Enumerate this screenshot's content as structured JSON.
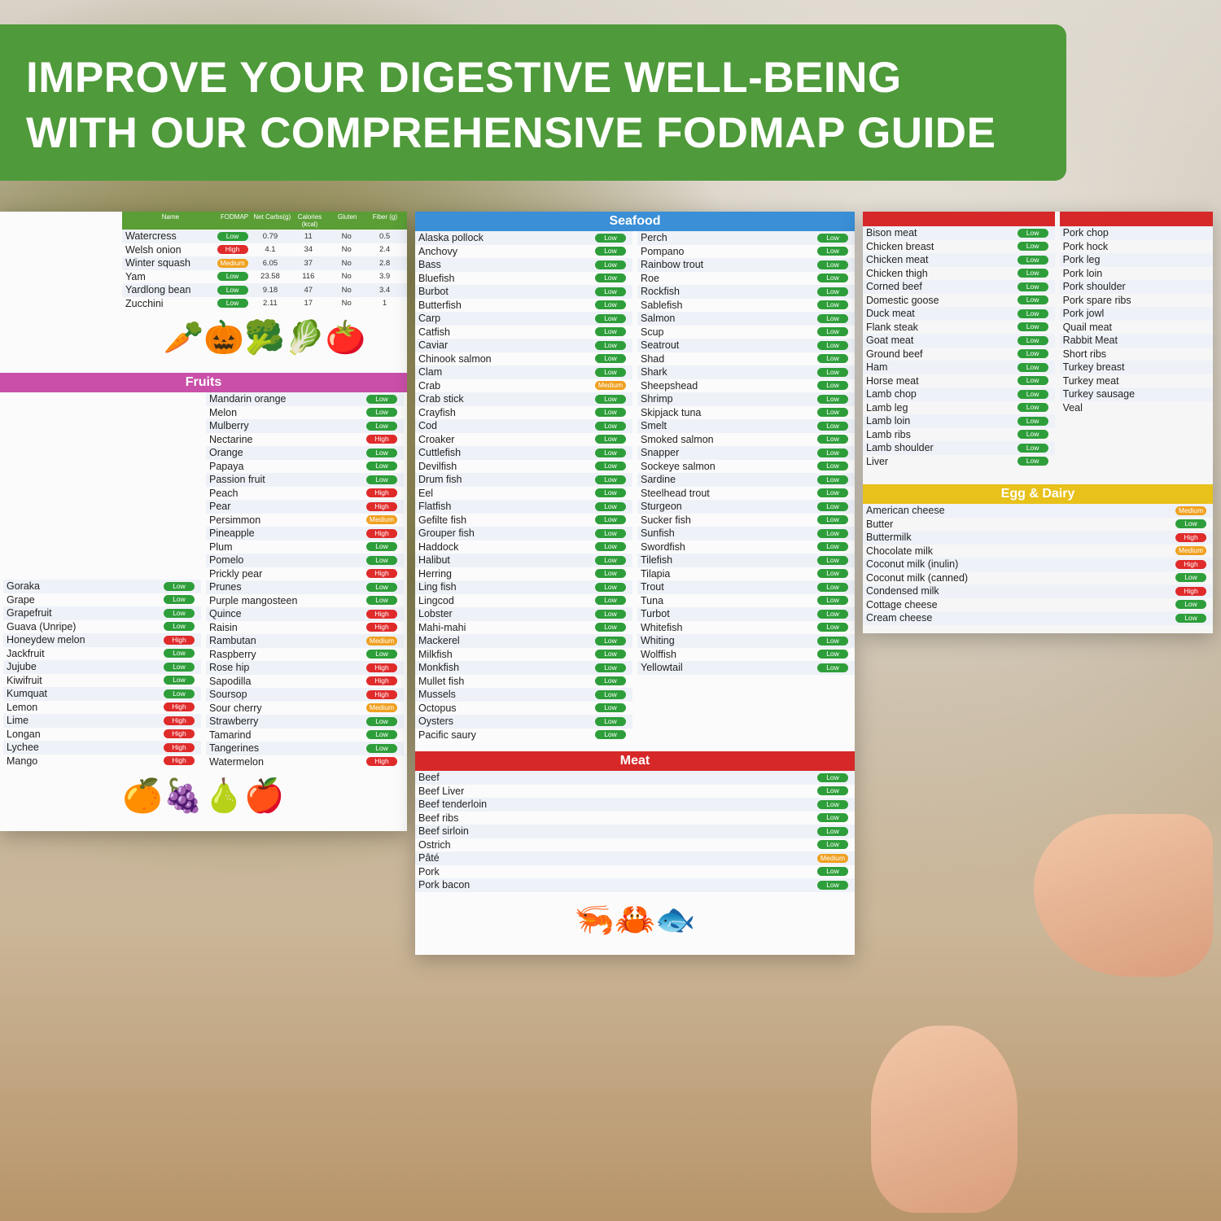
{
  "banner": {
    "line1": "IMPROVE YOUR DIGESTIVE WELL-BEING",
    "line2": "WITH OUR COMPREHENSIVE FODMAP GUIDE",
    "color": "#4f9a3a"
  },
  "headers": {
    "name": "Name",
    "fodmap": "FODMAP",
    "carbs": "Net Carbs(g)",
    "calories": "Calories (kcal)",
    "gluten": "Gluten",
    "fiber": "Fiber (g)"
  },
  "colors": {
    "Low": "#2e9e3a",
    "Medium": "#f0a020",
    "High": "#e02b2b",
    "seafood": "#3a8fd6",
    "fruits": "#c94fa8",
    "vegetables": "#5a9e35",
    "meat": "#d62828",
    "dairy": "#e8c11a"
  },
  "vegetables": {
    "items": [
      {
        "name": "Watercress",
        "fodmap": "Low",
        "carbs": "0.79",
        "cal": "11",
        "gluten": "No",
        "fiber": "0.5"
      },
      {
        "name": "Welsh onion",
        "fodmap": "High",
        "carbs": "4.1",
        "cal": "34",
        "gluten": "No",
        "fiber": "2.4"
      },
      {
        "name": "Winter squash",
        "fodmap": "Medium",
        "carbs": "6.05",
        "cal": "37",
        "gluten": "No",
        "fiber": "2.8"
      },
      {
        "name": "Yam",
        "fodmap": "Low",
        "carbs": "23.58",
        "cal": "116",
        "gluten": "No",
        "fiber": "3.9"
      },
      {
        "name": "Yardlong bean",
        "fodmap": "Low",
        "carbs": "9.18",
        "cal": "47",
        "gluten": "No",
        "fiber": "3.4"
      },
      {
        "name": "Zucchini",
        "fodmap": "Low",
        "carbs": "2.11",
        "cal": "17",
        "gluten": "No",
        "fiber": "1"
      }
    ]
  },
  "fruits": {
    "title": "Fruits",
    "left": [
      {
        "name": "Goraka",
        "fodmap": "Low"
      },
      {
        "name": "Grape",
        "fodmap": "Low"
      },
      {
        "name": "Grapefruit",
        "fodmap": "Low"
      },
      {
        "name": "Guava (Unripe)",
        "fodmap": "Low"
      },
      {
        "name": "Honeydew melon",
        "fodmap": "High"
      },
      {
        "name": "Jackfruit",
        "fodmap": "Low"
      },
      {
        "name": "Jujube",
        "fodmap": "Low"
      },
      {
        "name": "Kiwifruit",
        "fodmap": "Low"
      },
      {
        "name": "Kumquat",
        "fodmap": "Low"
      },
      {
        "name": "Lemon",
        "fodmap": "High"
      },
      {
        "name": "Lime",
        "fodmap": "High"
      },
      {
        "name": "Longan",
        "fodmap": "High"
      },
      {
        "name": "Lychee",
        "fodmap": "High"
      },
      {
        "name": "Mango",
        "fodmap": "High"
      }
    ],
    "right": [
      {
        "name": "Mandarin orange",
        "fodmap": "Low"
      },
      {
        "name": "Melon",
        "fodmap": "Low"
      },
      {
        "name": "Mulberry",
        "fodmap": "Low"
      },
      {
        "name": "Nectarine",
        "fodmap": "High"
      },
      {
        "name": "Orange",
        "fodmap": "Low"
      },
      {
        "name": "Papaya",
        "fodmap": "Low"
      },
      {
        "name": "Passion fruit",
        "fodmap": "Low"
      },
      {
        "name": "Peach",
        "fodmap": "High"
      },
      {
        "name": "Pear",
        "fodmap": "High"
      },
      {
        "name": "Persimmon",
        "fodmap": "Medium"
      },
      {
        "name": "Pineapple",
        "fodmap": "High"
      },
      {
        "name": "Plum",
        "fodmap": "Low"
      },
      {
        "name": "Pomelo",
        "fodmap": "Low"
      },
      {
        "name": "Prickly pear",
        "fodmap": "High"
      },
      {
        "name": "Prunes",
        "fodmap": "Low"
      },
      {
        "name": "Purple mangosteen",
        "fodmap": "Low"
      },
      {
        "name": "Quince",
        "fodmap": "High"
      },
      {
        "name": "Raisin",
        "fodmap": "High"
      },
      {
        "name": "Rambutan",
        "fodmap": "Medium"
      },
      {
        "name": "Raspberry",
        "fodmap": "Low"
      },
      {
        "name": "Rose hip",
        "fodmap": "High"
      },
      {
        "name": "Sapodilla",
        "fodmap": "High"
      },
      {
        "name": "Soursop",
        "fodmap": "High"
      },
      {
        "name": "Sour cherry",
        "fodmap": "Medium"
      },
      {
        "name": "Strawberry",
        "fodmap": "Low"
      },
      {
        "name": "Tamarind",
        "fodmap": "Low"
      },
      {
        "name": "Tangerines",
        "fodmap": "Low"
      },
      {
        "name": "Watermelon",
        "fodmap": "High"
      }
    ]
  },
  "seafood": {
    "title": "Seafood",
    "col1": [
      {
        "name": "Alaska pollock",
        "fodmap": "Low"
      },
      {
        "name": "Anchovy",
        "fodmap": "Low"
      },
      {
        "name": "Bass",
        "fodmap": "Low"
      },
      {
        "name": "Bluefish",
        "fodmap": "Low"
      },
      {
        "name": "Burbot",
        "fodmap": "Low"
      },
      {
        "name": "Butterfish",
        "fodmap": "Low"
      },
      {
        "name": "Carp",
        "fodmap": "Low"
      },
      {
        "name": "Catfish",
        "fodmap": "Low"
      },
      {
        "name": "Caviar",
        "fodmap": "Low"
      },
      {
        "name": "Chinook salmon",
        "fodmap": "Low"
      },
      {
        "name": "Clam",
        "fodmap": "Low"
      },
      {
        "name": "Crab",
        "fodmap": "Medium"
      },
      {
        "name": "Crab stick",
        "fodmap": "Low"
      },
      {
        "name": "Crayfish",
        "fodmap": "Low"
      },
      {
        "name": "Cod",
        "fodmap": "Low"
      },
      {
        "name": "Croaker",
        "fodmap": "Low"
      },
      {
        "name": "Cuttlefish",
        "fodmap": "Low"
      },
      {
        "name": "Devilfish",
        "fodmap": "Low"
      },
      {
        "name": "Drum fish",
        "fodmap": "Low"
      },
      {
        "name": "Eel",
        "fodmap": "Low"
      },
      {
        "name": "Flatfish",
        "fodmap": "Low"
      },
      {
        "name": "Gefilte fish",
        "fodmap": "Low"
      },
      {
        "name": "Grouper fish",
        "fodmap": "Low"
      },
      {
        "name": "Haddock",
        "fodmap": "Low"
      },
      {
        "name": "Halibut",
        "fodmap": "Low"
      },
      {
        "name": "Herring",
        "fodmap": "Low"
      },
      {
        "name": "Ling fish",
        "fodmap": "Low"
      },
      {
        "name": "Lingcod",
        "fodmap": "Low"
      },
      {
        "name": "Lobster",
        "fodmap": "Low"
      },
      {
        "name": "Mahi-mahi",
        "fodmap": "Low"
      },
      {
        "name": "Mackerel",
        "fodmap": "Low"
      },
      {
        "name": "Milkfish",
        "fodmap": "Low"
      },
      {
        "name": "Monkfish",
        "fodmap": "Low"
      },
      {
        "name": "Mullet fish",
        "fodmap": "Low"
      },
      {
        "name": "Mussels",
        "fodmap": "Low"
      },
      {
        "name": "Octopus",
        "fodmap": "Low"
      },
      {
        "name": "Oysters",
        "fodmap": "Low"
      },
      {
        "name": "Pacific saury",
        "fodmap": "Low"
      }
    ],
    "col2": [
      {
        "name": "Perch",
        "fodmap": "Low"
      },
      {
        "name": "Pompano",
        "fodmap": "Low"
      },
      {
        "name": "Rainbow trout",
        "fodmap": "Low"
      },
      {
        "name": "Roe",
        "fodmap": "Low"
      },
      {
        "name": "Rockfish",
        "fodmap": "Low"
      },
      {
        "name": "Sablefish",
        "fodmap": "Low"
      },
      {
        "name": "Salmon",
        "fodmap": "Low"
      },
      {
        "name": "Scup",
        "fodmap": "Low"
      },
      {
        "name": "Seatrout",
        "fodmap": "Low"
      },
      {
        "name": "Shad",
        "fodmap": "Low"
      },
      {
        "name": "Shark",
        "fodmap": "Low"
      },
      {
        "name": "Sheepshead",
        "fodmap": "Low"
      },
      {
        "name": "Shrimp",
        "fodmap": "Low"
      },
      {
        "name": "Skipjack tuna",
        "fodmap": "Low"
      },
      {
        "name": "Smelt",
        "fodmap": "Low"
      },
      {
        "name": "Smoked salmon",
        "fodmap": "Low"
      },
      {
        "name": "Snapper",
        "fodmap": "Low"
      },
      {
        "name": "Sockeye salmon",
        "fodmap": "Low"
      },
      {
        "name": "Sardine",
        "fodmap": "Low"
      },
      {
        "name": "Steelhead trout",
        "fodmap": "Low"
      },
      {
        "name": "Sturgeon",
        "fodmap": "Low"
      },
      {
        "name": "Sucker fish",
        "fodmap": "Low"
      },
      {
        "name": "Sunfish",
        "fodmap": "Low"
      },
      {
        "name": "Swordfish",
        "fodmap": "Low"
      },
      {
        "name": "Tilefish",
        "fodmap": "Low"
      },
      {
        "name": "Tilapia",
        "fodmap": "Low"
      },
      {
        "name": "Trout",
        "fodmap": "Low"
      },
      {
        "name": "Tuna",
        "fodmap": "Low"
      },
      {
        "name": "Turbot",
        "fodmap": "Low"
      },
      {
        "name": "Whitefish",
        "fodmap": "Low"
      },
      {
        "name": "Whiting",
        "fodmap": "Low"
      },
      {
        "name": "Wolffish",
        "fodmap": "Low"
      },
      {
        "name": "Yellowtail",
        "fodmap": "Low"
      }
    ]
  },
  "meat": {
    "title": "Meat",
    "col1": [
      {
        "name": "Bison meat",
        "fodmap": "Low"
      },
      {
        "name": "Chicken breast",
        "fodmap": "Low"
      },
      {
        "name": "Chicken meat",
        "fodmap": "Low"
      },
      {
        "name": "Chicken thigh",
        "fodmap": "Low"
      },
      {
        "name": "Corned beef",
        "fodmap": "Low"
      },
      {
        "name": "Domestic goose",
        "fodmap": "Low"
      },
      {
        "name": "Duck meat",
        "fodmap": "Low"
      },
      {
        "name": "Flank steak",
        "fodmap": "Low"
      },
      {
        "name": "Goat meat",
        "fodmap": "Low"
      },
      {
        "name": "Ground beef",
        "fodmap": "Low"
      },
      {
        "name": "Ham",
        "fodmap": "Low"
      },
      {
        "name": "Horse meat",
        "fodmap": "Low"
      },
      {
        "name": "Lamb chop",
        "fodmap": "Low"
      },
      {
        "name": "Lamb leg",
        "fodmap": "Low"
      },
      {
        "name": "Lamb loin",
        "fodmap": "Low"
      },
      {
        "name": "Lamb ribs",
        "fodmap": "Low"
      },
      {
        "name": "Lamb shoulder",
        "fodmap": "Low"
      },
      {
        "name": "Liver",
        "fodmap": "Low"
      }
    ],
    "col2": [
      "Pork chop",
      "Pork hock",
      "Pork leg",
      "Pork loin",
      "Pork shoulder",
      "Pork spare ribs",
      "Pork jowl",
      "Quail meat",
      "Rabbit Meat",
      "Short ribs",
      "Turkey breast",
      "Turkey meat",
      "Turkey sausage",
      "Veal"
    ],
    "bottom": [
      {
        "name": "Beef",
        "fodmap": "Low"
      },
      {
        "name": "Beef Liver",
        "fodmap": "Low"
      },
      {
        "name": "Beef tenderloin",
        "fodmap": "Low"
      },
      {
        "name": "Beef ribs",
        "fodmap": "Low"
      },
      {
        "name": "Beef sirloin",
        "fodmap": "Low"
      },
      {
        "name": "Ostrich",
        "fodmap": "Low"
      },
      {
        "name": "Pâté",
        "fodmap": "Medium"
      },
      {
        "name": "Pork",
        "fodmap": "Low"
      },
      {
        "name": "Pork bacon",
        "fodmap": "Low"
      }
    ]
  },
  "dairy": {
    "title": "Egg & Dairy",
    "items": [
      {
        "name": "American cheese",
        "fodmap": "Medium"
      },
      {
        "name": "Butter",
        "fodmap": "Low"
      },
      {
        "name": "Buttermilk",
        "fodmap": "High"
      },
      {
        "name": "Chocolate milk",
        "fodmap": "Medium"
      },
      {
        "name": "Coconut milk (inulin)",
        "fodmap": "High"
      },
      {
        "name": "Coconut milk (canned)",
        "fodmap": "Low"
      },
      {
        "name": "Condensed milk",
        "fodmap": "High"
      },
      {
        "name": "Cottage cheese",
        "fodmap": "Low"
      },
      {
        "name": "Cream cheese",
        "fodmap": "Low"
      }
    ]
  }
}
